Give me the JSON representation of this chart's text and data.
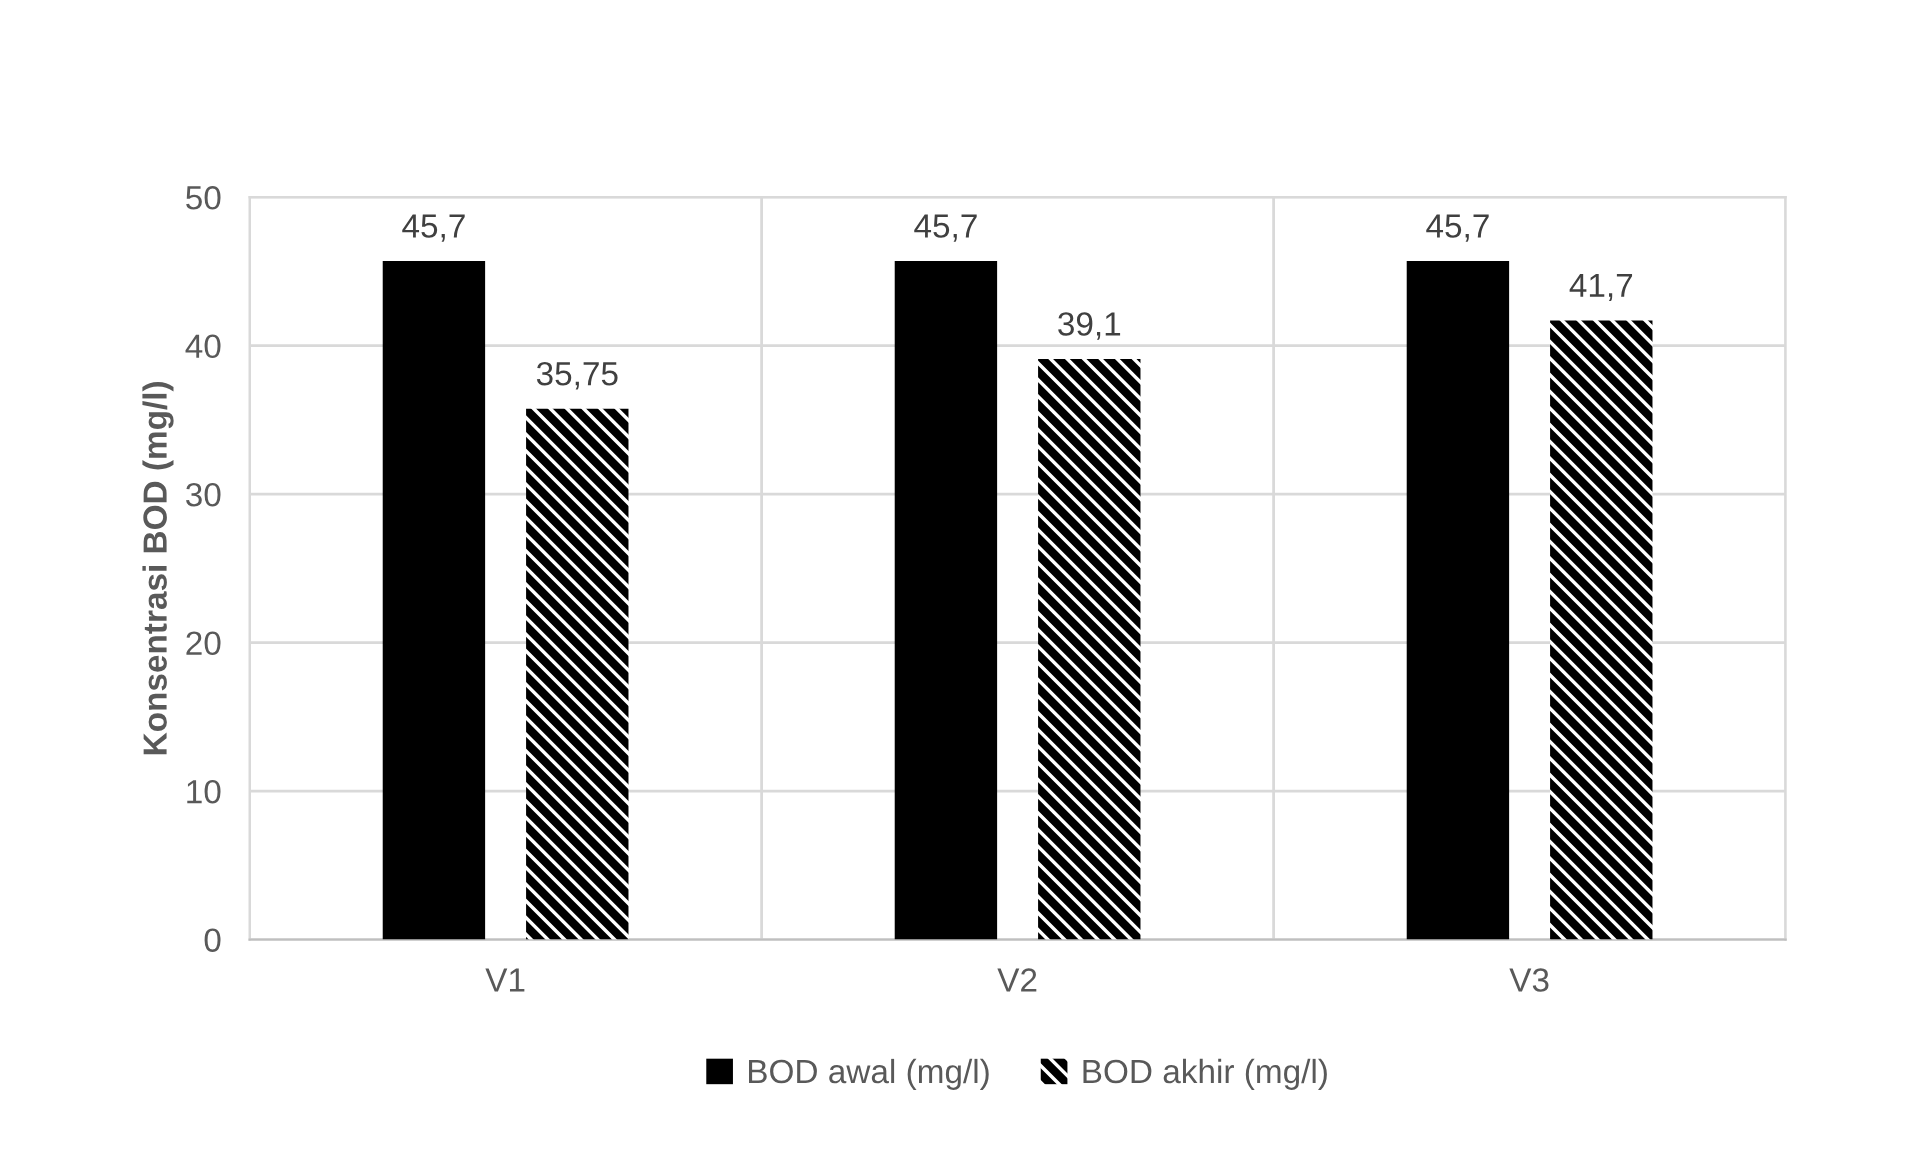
{
  "chart_data": {
    "type": "bar",
    "ylabel": "Konsentrasi BOD (mg/l)",
    "categories": [
      "V1",
      "V2",
      "V3"
    ],
    "series": [
      {
        "name": "BOD awal (mg/l)",
        "color": "#000000",
        "values": [
          45.7,
          45.7,
          45.7
        ],
        "value_labels": [
          "45,7",
          "45,7",
          "45,7"
        ]
      },
      {
        "name": "BOD akhir (mg/l)",
        "color": "#000000",
        "values": [
          35.75,
          39.1,
          41.7
        ],
        "value_labels": [
          "35,75",
          "39,1",
          "41,7"
        ]
      }
    ],
    "ylim": [
      0,
      50
    ],
    "yticks": [
      0,
      10,
      20,
      30,
      40,
      50
    ],
    "grid": true,
    "legend": "bottom"
  }
}
